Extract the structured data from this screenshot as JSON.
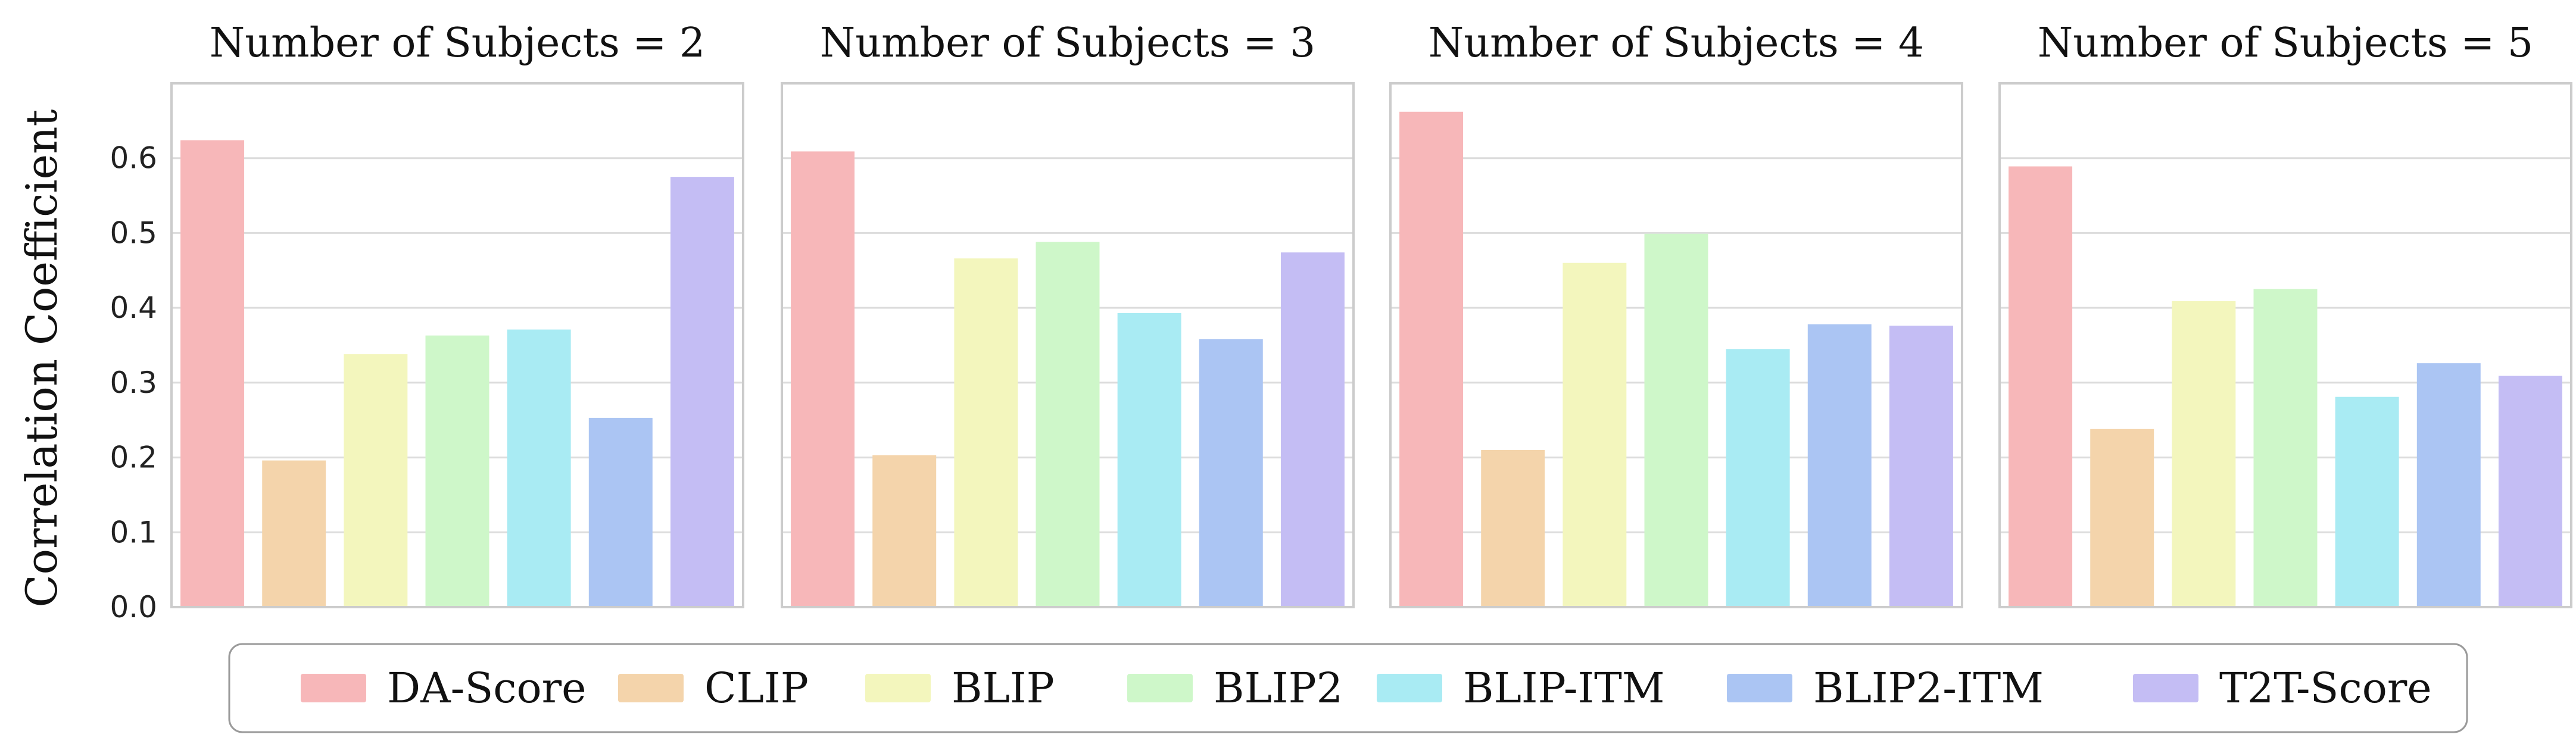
{
  "chart_data": {
    "type": "bar",
    "ylabel": "Correlation Coefficient",
    "ylim": [
      0,
      0.7
    ],
    "yticks": [
      "0.0",
      "0.1",
      "0.2",
      "0.3",
      "0.4",
      "0.5",
      "0.6"
    ],
    "grid": true,
    "legend_position": "bottom",
    "series": [
      {
        "name": "DA-Score",
        "color": "#f7b7b9"
      },
      {
        "name": "CLIP",
        "color": "#f4d4ab"
      },
      {
        "name": "BLIP",
        "color": "#f3f6bd"
      },
      {
        "name": "BLIP2",
        "color": "#cef7c9"
      },
      {
        "name": "BLIP-ITM",
        "color": "#a9ebf3"
      },
      {
        "name": "BLIP2-ITM",
        "color": "#abc5f3"
      },
      {
        "name": "T2T-Score",
        "color": "#c4bdf4"
      }
    ],
    "panels": [
      {
        "title": "Number of Subjects = 2",
        "values": [
          0.624,
          0.196,
          0.338,
          0.363,
          0.371,
          0.253,
          0.575
        ]
      },
      {
        "title": "Number of Subjects = 3",
        "values": [
          0.609,
          0.203,
          0.466,
          0.488,
          0.393,
          0.358,
          0.474
        ]
      },
      {
        "title": "Number of Subjects = 4",
        "values": [
          0.662,
          0.21,
          0.46,
          0.499,
          0.345,
          0.378,
          0.376
        ]
      },
      {
        "title": "Number of Subjects =  5",
        "values": [
          0.589,
          0.238,
          0.409,
          0.425,
          0.281,
          0.326,
          0.309
        ]
      }
    ]
  }
}
